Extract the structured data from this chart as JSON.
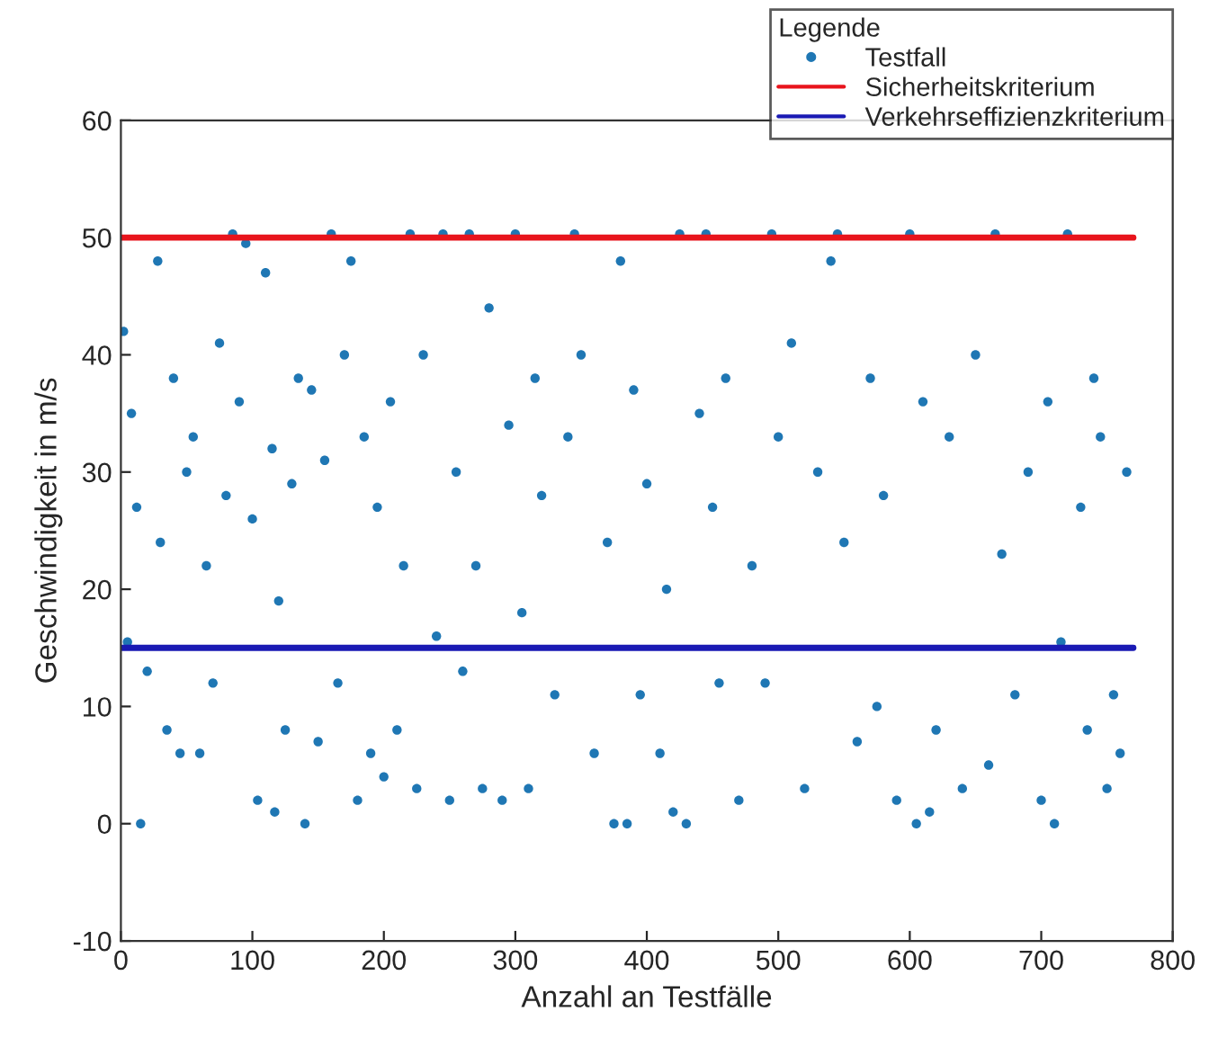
{
  "chart_data": {
    "type": "scatter",
    "xlabel": "Anzahl an Testfälle",
    "ylabel": "Geschwindigkeit in m/s",
    "legend_title": "Legende",
    "legend": "top right",
    "grid": false,
    "xlim": [
      0,
      800
    ],
    "ylim": [
      -10,
      60
    ],
    "xticks": [
      0,
      100,
      200,
      300,
      400,
      500,
      600,
      700,
      800
    ],
    "yticks": [
      -10,
      0,
      10,
      20,
      30,
      40,
      50,
      60
    ],
    "series": [
      {
        "name": "Testfall",
        "marker": "circle",
        "color": "#1f77b4",
        "x": [
          2,
          5,
          8,
          12,
          15,
          20,
          28,
          30,
          35,
          40,
          45,
          50,
          55,
          60,
          65,
          70,
          75,
          80,
          85,
          90,
          95,
          100,
          104,
          110,
          115,
          117,
          120,
          125,
          130,
          135,
          140,
          145,
          150,
          155,
          160,
          165,
          170,
          175,
          180,
          185,
          190,
          195,
          200,
          205,
          210,
          215,
          220,
          225,
          230,
          240,
          245,
          250,
          255,
          260,
          265,
          270,
          275,
          280,
          290,
          295,
          300,
          305,
          310,
          315,
          320,
          330,
          340,
          345,
          350,
          360,
          370,
          375,
          380,
          385,
          390,
          395,
          400,
          410,
          415,
          420,
          425,
          430,
          440,
          445,
          450,
          455,
          460,
          470,
          480,
          490,
          495,
          500,
          510,
          520,
          530,
          540,
          545,
          550,
          560,
          570,
          575,
          580,
          590,
          600,
          605,
          610,
          615,
          620,
          630,
          640,
          650,
          660,
          665,
          670,
          680,
          690,
          700,
          705,
          710,
          715,
          720,
          730,
          735,
          740,
          745,
          750,
          755,
          760,
          765
        ],
        "values": [
          42,
          15.5,
          35,
          27,
          0,
          13,
          48,
          24,
          8,
          38,
          6,
          30,
          33,
          6,
          22,
          12,
          41,
          28,
          50.3,
          36,
          49.5,
          26,
          2,
          47,
          32,
          1,
          19,
          8,
          29,
          38,
          0,
          37,
          7,
          31,
          50.3,
          12,
          40,
          48,
          2,
          33,
          6,
          27,
          4,
          36,
          8,
          22,
          50.3,
          3,
          40,
          16,
          50.3,
          2,
          30,
          13,
          50.3,
          22,
          3,
          44,
          2,
          34,
          50.3,
          18,
          3,
          38,
          28,
          11,
          33,
          50.3,
          40,
          6,
          24,
          0,
          48,
          0,
          37,
          11,
          29,
          6,
          20,
          1,
          50.3,
          0,
          35,
          50.3,
          27,
          12,
          38,
          2,
          22,
          12,
          50.3,
          33,
          41,
          3,
          30,
          48,
          50.3,
          24,
          7,
          38,
          10,
          28,
          2,
          50.3,
          0,
          36,
          1,
          8,
          33,
          3,
          40,
          5,
          50.3,
          23,
          11,
          30,
          2,
          36,
          0,
          15.5,
          50.3,
          27,
          8,
          38,
          33,
          3,
          11,
          6,
          30
        ]
      },
      {
        "name": "Sicherheitskriterium",
        "type": "line",
        "color": "#e8141c",
        "x": [
          1,
          770
        ],
        "values": [
          50,
          50
        ]
      },
      {
        "name": "Verkehrseffizienzkriterium",
        "type": "line",
        "color": "#1a1ab4",
        "x": [
          1,
          770
        ],
        "values": [
          15,
          15
        ]
      }
    ]
  }
}
